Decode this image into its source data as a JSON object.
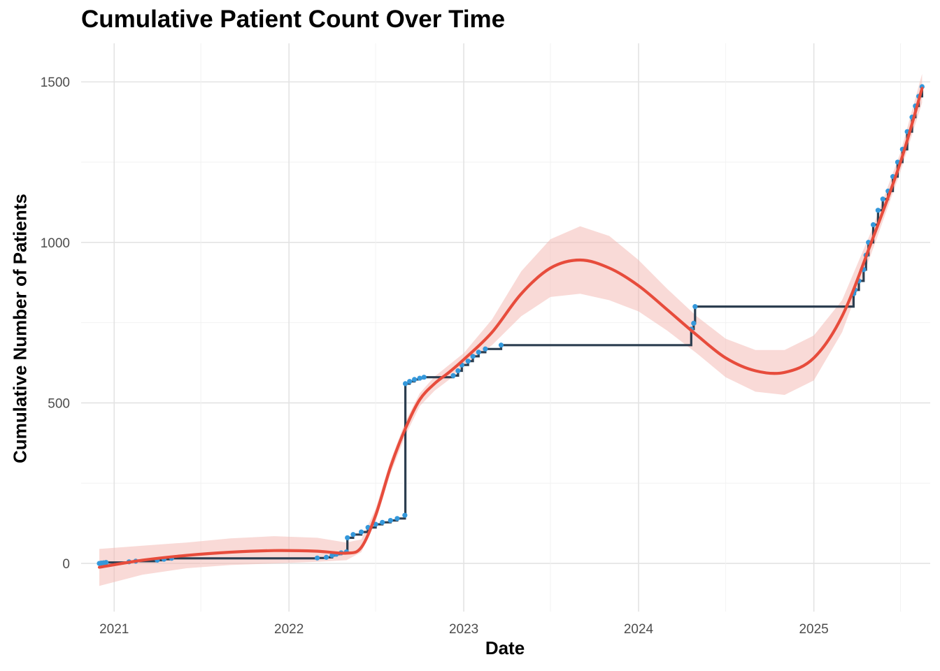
{
  "chart_data": {
    "type": "line",
    "title": "Cumulative Patient Count Over Time",
    "xlabel": "Date",
    "ylabel": "Cumulative Number of Patients",
    "x_ticks": [
      "2021",
      "2022",
      "2023",
      "2024",
      "2025"
    ],
    "y_ticks": [
      "0",
      "500",
      "1000",
      "1500"
    ],
    "xlim": [
      "2020-10-24",
      "2025-09-01"
    ],
    "ylim": [
      -150,
      1620
    ],
    "grid": true,
    "legend": "none",
    "colors": {
      "cumulative_line": "#2c3e50",
      "points": "#3498db",
      "smooth": "#e74c3c",
      "ribbon": "#f4b6b0"
    },
    "series": [
      {
        "type": "step",
        "points": [
          [
            "2020-12-01",
            0
          ],
          [
            "2020-12-05",
            1
          ],
          [
            "2020-12-10",
            2
          ],
          [
            "2020-12-15",
            3
          ],
          [
            "2021-02-01",
            5
          ],
          [
            "2021-02-15",
            7
          ],
          [
            "2021-04-01",
            10
          ],
          [
            "2021-04-15",
            13
          ],
          [
            "2021-05-01",
            16
          ],
          [
            "2022-03-01",
            17
          ],
          [
            "2022-03-20",
            19
          ],
          [
            "2022-04-01",
            25
          ],
          [
            "2022-04-10",
            29
          ],
          [
            "2022-04-20",
            33
          ],
          [
            "2022-05-01",
            36
          ],
          [
            "2022-05-03",
            80
          ],
          [
            "2022-05-15",
            90
          ],
          [
            "2022-06-01",
            98
          ],
          [
            "2022-06-15",
            112
          ],
          [
            "2022-07-01",
            122
          ],
          [
            "2022-07-15",
            128
          ],
          [
            "2022-08-01",
            134
          ],
          [
            "2022-08-15",
            140
          ],
          [
            "2022-08-31",
            150
          ],
          [
            "2022-09-01",
            560
          ],
          [
            "2022-09-10",
            567
          ],
          [
            "2022-09-20",
            573
          ],
          [
            "2022-10-01",
            577
          ],
          [
            "2022-10-10",
            580
          ],
          [
            "2022-12-10",
            585
          ],
          [
            "2022-12-20",
            600
          ],
          [
            "2022-12-28",
            618
          ],
          [
            "2023-01-10",
            630
          ],
          [
            "2023-01-20",
            645
          ],
          [
            "2023-02-01",
            658
          ],
          [
            "2023-02-15",
            668
          ],
          [
            "2023-03-20",
            680
          ],
          [
            "2024-04-20",
            730
          ],
          [
            "2024-04-25",
            748
          ],
          [
            "2024-04-28",
            800
          ],
          [
            "2025-03-25",
            840
          ],
          [
            "2025-03-28",
            852
          ],
          [
            "2025-04-05",
            880
          ],
          [
            "2025-04-15",
            915
          ],
          [
            "2025-04-20",
            960
          ],
          [
            "2025-04-25",
            1000
          ],
          [
            "2025-05-05",
            1055
          ],
          [
            "2025-05-15",
            1100
          ],
          [
            "2025-05-25",
            1135
          ],
          [
            "2025-06-05",
            1160
          ],
          [
            "2025-06-15",
            1205
          ],
          [
            "2025-06-25",
            1250
          ],
          [
            "2025-07-05",
            1290
          ],
          [
            "2025-07-15",
            1345
          ],
          [
            "2025-07-25",
            1390
          ],
          [
            "2025-08-01",
            1425
          ],
          [
            "2025-08-08",
            1455
          ],
          [
            "2025-08-15",
            1485
          ]
        ]
      },
      {
        "type": "smooth",
        "points": [
          [
            "2020-12-01",
            -12
          ],
          [
            "2021-03-01",
            10
          ],
          [
            "2021-06-01",
            25
          ],
          [
            "2021-09-01",
            35
          ],
          [
            "2021-12-01",
            40
          ],
          [
            "2022-03-01",
            38
          ],
          [
            "2022-05-01",
            32
          ],
          [
            "2022-06-01",
            50
          ],
          [
            "2022-07-01",
            150
          ],
          [
            "2022-08-01",
            300
          ],
          [
            "2022-09-01",
            420
          ],
          [
            "2022-10-01",
            510
          ],
          [
            "2022-11-01",
            560
          ],
          [
            "2022-12-01",
            595
          ],
          [
            "2023-01-01",
            635
          ],
          [
            "2023-03-01",
            720
          ],
          [
            "2023-05-01",
            840
          ],
          [
            "2023-07-01",
            920
          ],
          [
            "2023-09-01",
            945
          ],
          [
            "2023-11-01",
            920
          ],
          [
            "2024-01-01",
            865
          ],
          [
            "2024-03-01",
            790
          ],
          [
            "2024-05-01",
            712
          ],
          [
            "2024-07-01",
            640
          ],
          [
            "2024-09-01",
            600
          ],
          [
            "2024-11-01",
            595
          ],
          [
            "2025-01-01",
            640
          ],
          [
            "2025-03-01",
            770
          ],
          [
            "2025-05-01",
            1000
          ],
          [
            "2025-07-01",
            1250
          ],
          [
            "2025-08-15",
            1480
          ]
        ],
        "band": [
          [
            -70,
            45
          ],
          [
            -35,
            55
          ],
          [
            -15,
            65
          ],
          [
            -5,
            78
          ],
          [
            0,
            85
          ],
          [
            5,
            80
          ],
          [
            10,
            65
          ],
          [
            35,
            75
          ],
          [
            130,
            170
          ],
          [
            280,
            320
          ],
          [
            398,
            442
          ],
          [
            490,
            530
          ],
          [
            538,
            582
          ],
          [
            572,
            618
          ],
          [
            615,
            655
          ],
          [
            680,
            760
          ],
          [
            770,
            910
          ],
          [
            830,
            1010
          ],
          [
            840,
            1050
          ],
          [
            820,
            1020
          ],
          [
            785,
            945
          ],
          [
            725,
            855
          ],
          [
            655,
            770
          ],
          [
            580,
            700
          ],
          [
            535,
            665
          ],
          [
            525,
            665
          ],
          [
            570,
            710
          ],
          [
            720,
            820
          ],
          [
            965,
            1035
          ],
          [
            1220,
            1280
          ],
          [
            1435,
            1525
          ]
        ]
      }
    ]
  }
}
